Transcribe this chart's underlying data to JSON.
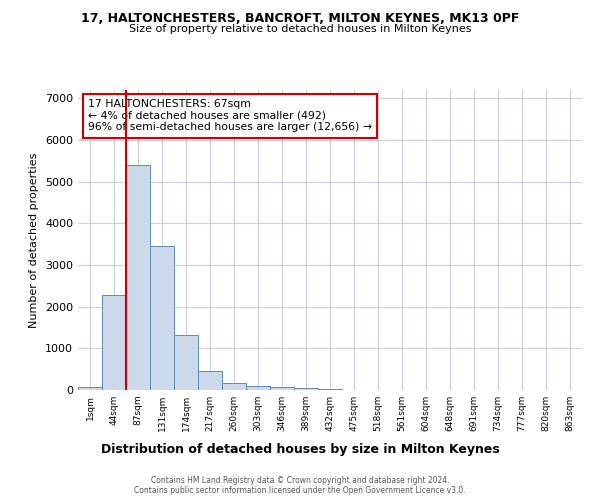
{
  "title1": "17, HALTONCHESTERS, BANCROFT, MILTON KEYNES, MK13 0PF",
  "title2": "Size of property relative to detached houses in Milton Keynes",
  "xlabel": "Distribution of detached houses by size in Milton Keynes",
  "ylabel": "Number of detached properties",
  "footer1": "Contains HM Land Registry data © Crown copyright and database right 2024.",
  "footer2": "Contains public sector information licensed under the Open Government Licence v3.0.",
  "bar_labels": [
    "1sqm",
    "44sqm",
    "87sqm",
    "131sqm",
    "174sqm",
    "217sqm",
    "260sqm",
    "303sqm",
    "346sqm",
    "389sqm",
    "432sqm",
    "475sqm",
    "518sqm",
    "561sqm",
    "604sqm",
    "648sqm",
    "691sqm",
    "734sqm",
    "777sqm",
    "820sqm",
    "863sqm"
  ],
  "bar_values": [
    80,
    2280,
    5400,
    3450,
    1310,
    450,
    180,
    95,
    80,
    50,
    15,
    5,
    3,
    2,
    1,
    1,
    0,
    0,
    0,
    0,
    0
  ],
  "bar_color": "#ccd9ea",
  "bar_edge_color": "#5b8ab5",
  "red_line_x": 1.5,
  "annotation_title": "17 HALTONCHESTERS: 67sqm",
  "annotation_line1": "← 4% of detached houses are smaller (492)",
  "annotation_line2": "96% of semi-detached houses are larger (12,656) →",
  "annotation_box_color": "#ffffff",
  "annotation_box_edge": "#cc0000",
  "red_line_color": "#cc0000",
  "ylim": [
    0,
    7200
  ],
  "yticks": [
    0,
    1000,
    2000,
    3000,
    4000,
    5000,
    6000,
    7000
  ],
  "background_color": "#ffffff",
  "grid_color": "#c8d0de"
}
